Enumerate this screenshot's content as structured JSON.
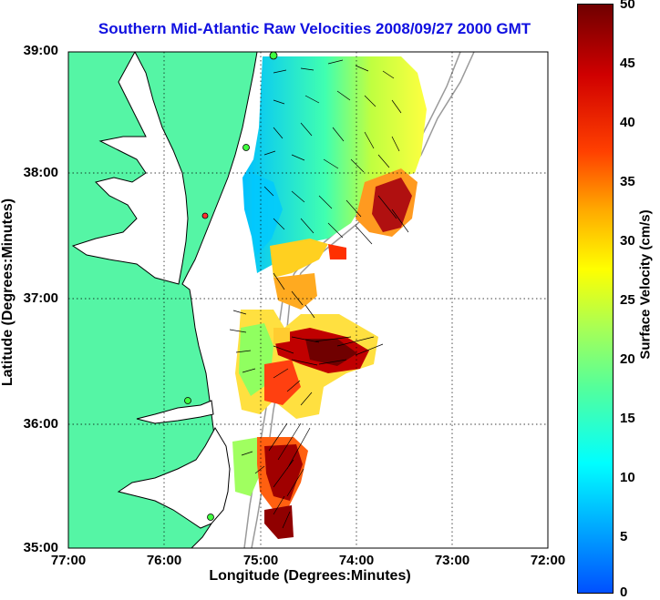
{
  "title": "Southern Mid-Atlantic Raw Velocities 2008/09/27 2000 GMT",
  "xlabel": "Longitude (Degrees:Minutes)",
  "ylabel": "Latitude (Degrees:Minutes)",
  "colorbar_label": "Surface Velocity (cm/s)",
  "x_ticks": [
    "77:00",
    "76:00",
    "75:00",
    "74:00",
    "73:00",
    "72:00"
  ],
  "y_ticks": [
    "39:00",
    "38:00",
    "37:00",
    "36:00",
    "35:00"
  ],
  "colorbar_ticks": [
    "50",
    "45",
    "40",
    "35",
    "30",
    "25",
    "20",
    "15",
    "10",
    "5",
    "0"
  ],
  "colors": {
    "land": "#55f5a5",
    "ocean": "#ffffff",
    "title": "#1010e0"
  }
}
